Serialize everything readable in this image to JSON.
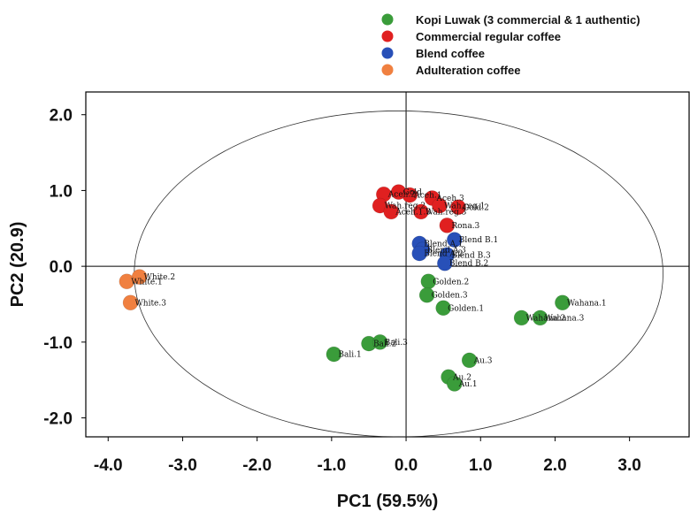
{
  "chart_data": {
    "type": "scatter",
    "title": "",
    "xlabel": "PC1 (59.5%)",
    "ylabel": "PC2 (20.9)",
    "xlim": [
      -4.3,
      3.8
    ],
    "ylim": [
      -2.25,
      2.3
    ],
    "xticks": [
      -4.0,
      -3.0,
      -2.0,
      -1.0,
      0.0,
      1.0,
      2.0,
      3.0
    ],
    "xtick_labels": [
      "-4.0",
      "-3.0",
      "-2.0",
      "-1.0",
      "0.0",
      "1.0",
      "2.0",
      "3.0"
    ],
    "yticks": [
      2.0,
      1.0,
      0.0,
      -1.0,
      -2.0
    ],
    "ytick_labels": [
      "2.0",
      "1.0",
      "0.0",
      "-1.0",
      "-2.0"
    ],
    "grid": false,
    "legend_position": "top-right",
    "confidence_ellipse": {
      "center": [
        -0.1,
        -0.1
      ],
      "rx": 3.55,
      "ry": 2.15
    },
    "series": [
      {
        "name": "Kopi Luwak (3 commercial & 1 authentic)",
        "color": "#3a9c3a",
        "points": [
          {
            "x": 0.3,
            "y": -0.2,
            "label": "Golden.2"
          },
          {
            "x": 0.28,
            "y": -0.38,
            "label": "Golden.3"
          },
          {
            "x": 0.5,
            "y": -0.55,
            "label": "Golden.1"
          },
          {
            "x": 2.1,
            "y": -0.48,
            "label": "Wahana.1"
          },
          {
            "x": 1.55,
            "y": -0.68,
            "label": "Wahana.2"
          },
          {
            "x": 1.8,
            "y": -0.68,
            "label": "Wahana.3"
          },
          {
            "x": -0.97,
            "y": -1.16,
            "label": "Bali.1"
          },
          {
            "x": -0.5,
            "y": -1.02,
            "label": "Bali.2"
          },
          {
            "x": -0.35,
            "y": -1.0,
            "label": "Bali.3"
          },
          {
            "x": 0.85,
            "y": -1.24,
            "label": "Au.3"
          },
          {
            "x": 0.57,
            "y": -1.46,
            "label": "Au.2"
          },
          {
            "x": 0.65,
            "y": -1.55,
            "label": "Au.1"
          }
        ]
      },
      {
        "name": "Commercial regular coffee",
        "color": "#e02020",
        "points": [
          {
            "x": -0.3,
            "y": 0.95,
            "label": "Aceh.2"
          },
          {
            "x": -0.1,
            "y": 0.98,
            "label": "Gold"
          },
          {
            "x": 0.05,
            "y": 0.94,
            "label": "Aceh.1"
          },
          {
            "x": 0.35,
            "y": 0.9,
            "label": "Aceh.3"
          },
          {
            "x": -0.35,
            "y": 0.8,
            "label": "Wah.reg.2"
          },
          {
            "x": 0.45,
            "y": 0.8,
            "label": "Wah.reg.1"
          },
          {
            "x": 0.7,
            "y": 0.78,
            "label": "Gold.2"
          },
          {
            "x": -0.2,
            "y": 0.72,
            "label": "Aceh.1.3"
          },
          {
            "x": 0.2,
            "y": 0.72,
            "label": "Wah.reg.3"
          },
          {
            "x": 0.55,
            "y": 0.54,
            "label": "Rona.3"
          }
        ]
      },
      {
        "name": "Blend coffee",
        "color": "#2850b8",
        "points": [
          {
            "x": 0.18,
            "y": 0.3,
            "label": "Blend A.1"
          },
          {
            "x": 0.65,
            "y": 0.35,
            "label": "Blend B.1"
          },
          {
            "x": 0.22,
            "y": 0.22,
            "label": "Blend A.3"
          },
          {
            "x": 0.18,
            "y": 0.17,
            "label": "Blend A.2"
          },
          {
            "x": 0.55,
            "y": 0.15,
            "label": "Blend B.3"
          },
          {
            "x": 0.52,
            "y": 0.04,
            "label": "Blend B.2"
          }
        ]
      },
      {
        "name": "Adulteration coffee",
        "color": "#f08040",
        "points": [
          {
            "x": -3.58,
            "y": -0.14,
            "label": "White.2"
          },
          {
            "x": -3.75,
            "y": -0.2,
            "label": "White.1"
          },
          {
            "x": -3.7,
            "y": -0.48,
            "label": "White.3"
          }
        ]
      }
    ]
  }
}
